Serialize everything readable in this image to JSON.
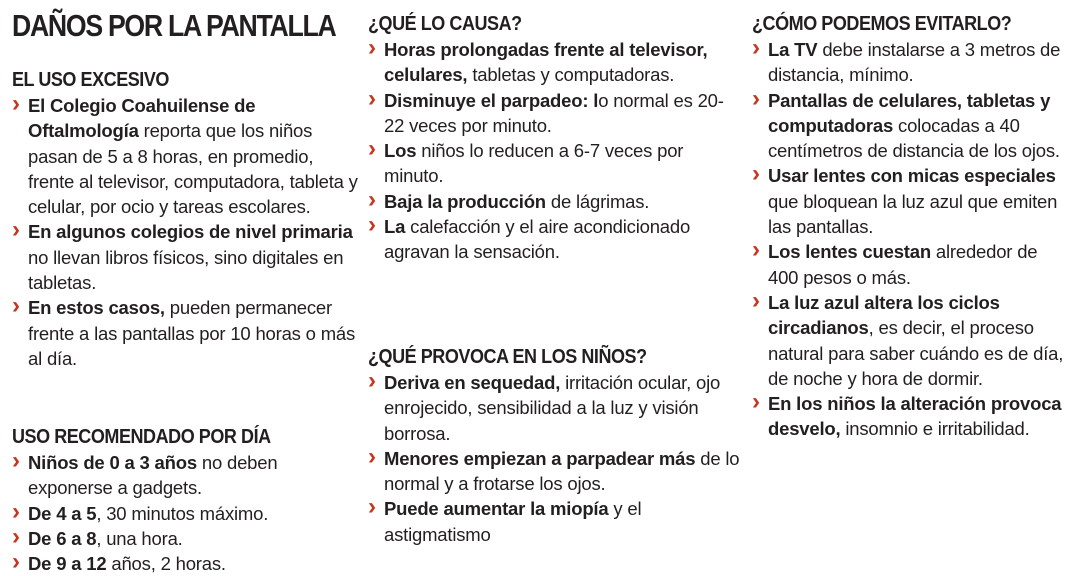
{
  "title": "DAÑOS POR LA PANTALLA",
  "columns": [
    {
      "sections": [
        {
          "heading": "EL USO EXCESIVO",
          "items": [
            {
              "bold": "El Colegio Coahuilense de Oftalmología",
              "rest": " reporta que los niños pasan de 5 a 8 horas, en promedio, frente al televisor, computadora, tableta y celular, por ocio y tareas escolares."
            },
            {
              "bold": "En algunos colegios de nivel primaria",
              "rest": " no llevan libros físicos, sino digitales en tabletas."
            },
            {
              "bold": "En estos casos,",
              "rest": " pueden permanecer frente a las pantallas por 10 horas o más al día."
            }
          ]
        },
        {
          "heading": "USO RECOMENDADO POR DÍA",
          "items": [
            {
              "bold": "Niños de 0 a 3 años",
              "rest": " no deben exponerse a gadgets."
            },
            {
              "bold": "De 4 a 5",
              "rest": ", 30 minutos máximo."
            },
            {
              "bold": "De 6 a 8",
              "rest": ", una hora."
            },
            {
              "bold": "De 9 a 12",
              "rest": " años, 2 horas."
            }
          ]
        }
      ]
    },
    {
      "sections": [
        {
          "heading": "¿QUÉ LO CAUSA?",
          "items": [
            {
              "bold": "Horas prolongadas frente al televisor, celulares,",
              "rest": " tabletas y computadoras."
            },
            {
              "bold": "Disminuye el parpadeo: l",
              "rest": "o normal es 20-22 veces por minuto."
            },
            {
              "bold": "Los",
              "rest": " niños lo reducen a 6-7 veces por minuto."
            },
            {
              "bold": "Baja la producción",
              "rest": " de lágrimas."
            },
            {
              "bold": "La",
              "rest": " calefacción y el aire acondicionado agravan la sensación."
            }
          ]
        },
        {
          "heading": "¿QUÉ PROVOCA EN LOS NIÑOS?",
          "items": [
            {
              "bold": "Deriva en sequedad,",
              "rest": " irritación ocular, ojo enrojecido, sensibilidad a la luz y visión borrosa."
            },
            {
              "bold": "Menores empiezan a parpadear más",
              "rest": " de lo normal y a frotarse los ojos."
            },
            {
              "bold": "Puede aumentar la miopía",
              "rest": " y el astigmatismo"
            }
          ]
        }
      ]
    },
    {
      "sections": [
        {
          "heading": "¿CÓMO PODEMOS EVITARLO?",
          "items": [
            {
              "bold": "La TV",
              "rest": " debe instalarse a 3 metros de distancia, mínimo."
            },
            {
              "bold": "Pantallas de celulares, tabletas y computadoras",
              "rest": " colocadas a 40 centímetros de distancia de los ojos."
            },
            {
              "bold": "Usar lentes con micas especiales",
              "rest": " que bloquean la luz azul que emiten las pantallas."
            },
            {
              "bold": "Los lentes cuestan",
              "rest": " alrededor de 400 pesos o más."
            },
            {
              "bold": "La luz azul altera los ciclos circadianos",
              "rest": ", es decir, el proceso natural para saber cuándo es de día, de noche y hora de dormir."
            },
            {
              "bold": "En los niños la alteración provoca desvelo,",
              "rest": " insomnio e irritabilidad."
            }
          ]
        }
      ]
    }
  ]
}
